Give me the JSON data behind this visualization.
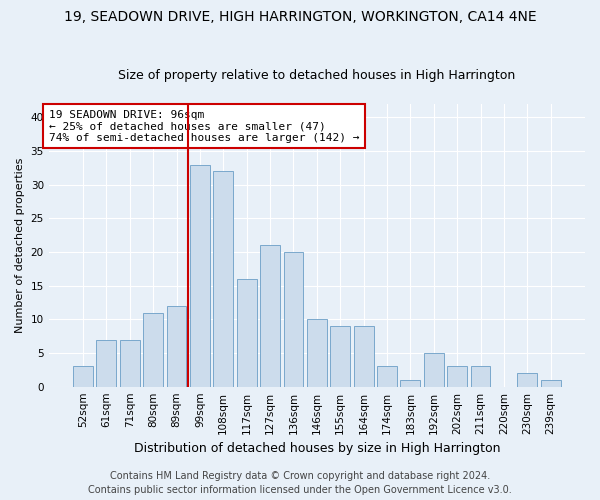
{
  "title": "19, SEADOWN DRIVE, HIGH HARRINGTON, WORKINGTON, CA14 4NE",
  "subtitle": "Size of property relative to detached houses in High Harrington",
  "xlabel": "Distribution of detached houses by size in High Harrington",
  "ylabel": "Number of detached properties",
  "bar_labels": [
    "52sqm",
    "61sqm",
    "71sqm",
    "80sqm",
    "89sqm",
    "99sqm",
    "108sqm",
    "117sqm",
    "127sqm",
    "136sqm",
    "146sqm",
    "155sqm",
    "164sqm",
    "174sqm",
    "183sqm",
    "192sqm",
    "202sqm",
    "211sqm",
    "220sqm",
    "230sqm",
    "239sqm"
  ],
  "bar_values": [
    3,
    7,
    7,
    11,
    12,
    33,
    32,
    16,
    21,
    20,
    10,
    9,
    9,
    3,
    1,
    5,
    3,
    3,
    0,
    2,
    1
  ],
  "bar_color": "#ccdcec",
  "bar_edge_color": "#7aa8cc",
  "reference_line_x": 4.5,
  "reference_line_color": "#cc0000",
  "annotation_text": "19 SEADOWN DRIVE: 96sqm\n← 25% of detached houses are smaller (47)\n74% of semi-detached houses are larger (142) →",
  "annotation_box_color": "#ffffff",
  "annotation_box_edge_color": "#cc0000",
  "ylim": [
    0,
    42
  ],
  "yticks": [
    0,
    5,
    10,
    15,
    20,
    25,
    30,
    35,
    40
  ],
  "footer_line1": "Contains HM Land Registry data © Crown copyright and database right 2024.",
  "footer_line2": "Contains public sector information licensed under the Open Government Licence v3.0.",
  "bg_color": "#e8f0f8",
  "plot_bg_color": "#e8f0f8",
  "title_fontsize": 10,
  "subtitle_fontsize": 9,
  "xlabel_fontsize": 9,
  "ylabel_fontsize": 8,
  "tick_fontsize": 7.5,
  "annotation_fontsize": 8,
  "footer_fontsize": 7
}
